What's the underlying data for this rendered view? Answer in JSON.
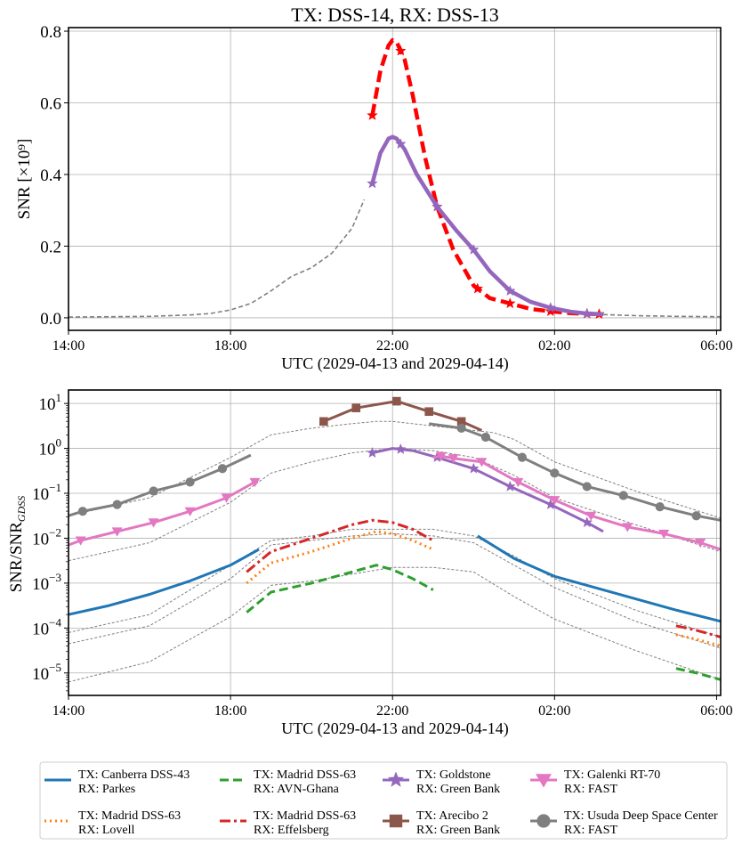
{
  "chart_data": [
    {
      "type": "line",
      "title": "TX: DSS-14, RX: DSS-13",
      "xlabel": "UTC (2029-04-13 and 2029-04-14)",
      "ylabel": "SNR [×10⁹]",
      "xlim": [
        14,
        30.1
      ],
      "ylim": [
        -0.035,
        0.81
      ],
      "xticks": [
        {
          "v": 14,
          "label": "14:00"
        },
        {
          "v": 18,
          "label": "18:00"
        },
        {
          "v": 22,
          "label": "22:00"
        },
        {
          "v": 26,
          "label": "02:00"
        },
        {
          "v": 30,
          "label": "06:00"
        }
      ],
      "yticks": [
        {
          "v": 0.0,
          "label": "0.0"
        },
        {
          "v": 0.2,
          "label": "0.2"
        },
        {
          "v": 0.4,
          "label": "0.4"
        },
        {
          "v": 0.6,
          "label": "0.6"
        },
        {
          "v": 0.8,
          "label": "0.8"
        }
      ],
      "grid": true,
      "series": [
        {
          "color": "#808080",
          "style": "dashed-thin",
          "x": [
            14,
            15,
            16,
            17,
            17.5,
            18,
            18.5,
            19,
            19.5,
            20,
            20.5,
            21,
            21.3
          ],
          "y": [
            0.002,
            0.003,
            0.004,
            0.008,
            0.012,
            0.022,
            0.04,
            0.075,
            0.115,
            0.14,
            0.18,
            0.25,
            0.33
          ]
        },
        {
          "color": "#808080",
          "style": "dashed-thin",
          "x": [
            27.2,
            28,
            29,
            30.1
          ],
          "y": [
            0.009,
            0.006,
            0.004,
            0.003
          ]
        },
        {
          "color": "#ff0000",
          "style": "dashed-thick",
          "marker": "star",
          "markers_at": [
            21.5,
            22.2,
            23.1,
            24.1,
            24.9,
            25.9,
            26.8,
            27.1
          ],
          "x": [
            21.5,
            21.7,
            21.9,
            22.0,
            22.1,
            22.3,
            22.5,
            22.8,
            23.1,
            23.5,
            24.0,
            24.4,
            24.9,
            25.4,
            25.9,
            26.4,
            26.8,
            27.2
          ],
          "y": [
            0.565,
            0.69,
            0.76,
            0.775,
            0.77,
            0.72,
            0.62,
            0.45,
            0.31,
            0.19,
            0.09,
            0.055,
            0.04,
            0.025,
            0.018,
            0.013,
            0.011,
            0.01
          ]
        },
        {
          "color": "#9467bd",
          "style": "solid-thick",
          "marker": "star",
          "markers_at": [
            21.5,
            22.2,
            23.1,
            24.0,
            24.9,
            25.9,
            26.8
          ],
          "x": [
            21.5,
            21.7,
            21.9,
            22.0,
            22.1,
            22.3,
            22.6,
            23.1,
            23.6,
            24.0,
            24.4,
            24.9,
            25.4,
            25.9,
            26.4,
            26.8,
            27.2
          ],
          "y": [
            0.375,
            0.46,
            0.5,
            0.505,
            0.5,
            0.47,
            0.4,
            0.31,
            0.24,
            0.19,
            0.13,
            0.075,
            0.045,
            0.028,
            0.017,
            0.012,
            0.01
          ]
        }
      ]
    },
    {
      "type": "line",
      "xlabel": "UTC (2029-04-13 and 2029-04-14)",
      "ylabel": "SNR/SNR",
      "ylabel_sub": "GDSS",
      "yscale": "log",
      "xlim": [
        14,
        30.1
      ],
      "ylim_exp": [
        -5.5,
        1.3
      ],
      "xticks": [
        {
          "v": 14,
          "label": "14:00"
        },
        {
          "v": 18,
          "label": "18:00"
        },
        {
          "v": 22,
          "label": "22:00"
        },
        {
          "v": 26,
          "label": "02:00"
        },
        {
          "v": 30,
          "label": "06:00"
        }
      ],
      "yticks": [
        {
          "e": -5,
          "label": "10",
          "sup": "−5"
        },
        {
          "e": -4,
          "label": "10",
          "sup": "−4"
        },
        {
          "e": -3,
          "label": "10",
          "sup": "−3"
        },
        {
          "e": -2,
          "label": "10",
          "sup": "−2"
        },
        {
          "e": -1,
          "label": "10",
          "sup": "−1"
        },
        {
          "e": 0,
          "label": "10",
          "sup": "0"
        },
        {
          "e": 1,
          "label": "10",
          "sup": "1"
        }
      ],
      "grid": true,
      "legend": {
        "placement": "bottom",
        "columns": 4,
        "entries": [
          {
            "tx": "TX: Canberra DSS-43",
            "rx": "RX: Parkes",
            "color": "#1f77b4",
            "style": "solid",
            "marker": ""
          },
          {
            "tx": "TX: Madrid DSS-63",
            "rx": "RX: Lovell",
            "color": "#ff7f0e",
            "style": "dotted",
            "marker": ""
          },
          {
            "tx": "TX: Madrid DSS-63",
            "rx": "RX: AVN-Ghana",
            "color": "#2ca02c",
            "style": "dashed",
            "marker": ""
          },
          {
            "tx": "TX: Madrid DSS-63",
            "rx": "RX: Effelsberg",
            "color": "#d62728",
            "style": "dashdot",
            "marker": ""
          },
          {
            "tx": "TX: Goldstone",
            "rx": "RX: Green Bank",
            "color": "#9467bd",
            "style": "solid",
            "marker": "star"
          },
          {
            "tx": "TX: Arecibo 2",
            "rx": "RX: Green Bank",
            "color": "#8c564b",
            "style": "solid",
            "marker": "square"
          },
          {
            "tx": "TX: Galenki RT-70",
            "rx": "RX: FAST",
            "color": "#e377c2",
            "style": "solid",
            "marker": "triangle-down"
          },
          {
            "tx": "TX: Usuda Deep Space Center",
            "rx": "RX: FAST",
            "color": "#7f7f7f",
            "style": "solid",
            "marker": "circle"
          }
        ]
      },
      "series": [
        {
          "color": "#808080",
          "style": "dashed-thin",
          "x": [
            14,
            16,
            18,
            19,
            20,
            21,
            21.6,
            22,
            23,
            24,
            24.5,
            25,
            26,
            28,
            30.1
          ],
          "logy": [
            -1.5,
            -1.1,
            -0.2,
            0.3,
            0.45,
            0.55,
            0.6,
            0.6,
            0.5,
            0.4,
            0.35,
            0.2,
            -0.3,
            -0.95,
            -1.55
          ]
        },
        {
          "color": "#808080",
          "style": "dashed-thin",
          "x": [
            14,
            16,
            18,
            19,
            20,
            21,
            22,
            23,
            24,
            25,
            26,
            28,
            30.1
          ],
          "logy": [
            -2.5,
            -2.1,
            -1.2,
            -0.55,
            -0.3,
            -0.1,
            0.0,
            -0.05,
            -0.2,
            -0.6,
            -1.1,
            -1.7,
            -2.3
          ]
        },
        {
          "color": "#808080",
          "style": "dashed-thin",
          "x": [
            14,
            16,
            18,
            19,
            20,
            21,
            22,
            23,
            24,
            25,
            26,
            28,
            30.1
          ],
          "logy": [
            -4.1,
            -3.7,
            -2.6,
            -2.05,
            -1.95,
            -1.8,
            -1.8,
            -1.8,
            -1.95,
            -2.4,
            -2.9,
            -3.6,
            -4.2
          ]
        },
        {
          "color": "#808080",
          "style": "dashed-thin",
          "x": [
            14,
            16,
            18,
            19,
            20,
            21,
            22,
            23,
            24,
            25,
            26,
            28,
            30.1
          ],
          "logy": [
            -4.35,
            -3.95,
            -2.9,
            -2.15,
            -2.05,
            -1.95,
            -1.9,
            -1.95,
            -2.1,
            -2.6,
            -3.1,
            -3.85,
            -4.45
          ]
        },
        {
          "color": "#808080",
          "style": "dashed-thin",
          "x": [
            14,
            16,
            18,
            19,
            20,
            21,
            22,
            23,
            24,
            25,
            26,
            28,
            30.1
          ],
          "logy": [
            -5.2,
            -4.75,
            -3.75,
            -3.05,
            -2.95,
            -2.8,
            -2.65,
            -2.65,
            -2.75,
            -3.3,
            -3.8,
            -4.5,
            -5.15
          ]
        },
        {
          "color": "#1f77b4",
          "style": "solid",
          "x": [
            14,
            15,
            16,
            17,
            18,
            18.7
          ],
          "logy": [
            -3.7,
            -3.5,
            -3.25,
            -2.95,
            -2.6,
            -2.25
          ]
        },
        {
          "color": "#1f77b4",
          "style": "solid",
          "x": [
            24.1,
            25,
            26,
            27,
            28,
            29,
            30.1
          ],
          "logy": [
            -1.95,
            -2.45,
            -2.85,
            -3.1,
            -3.35,
            -3.6,
            -3.85
          ]
        },
        {
          "color": "#ff7f0e",
          "style": "dotted",
          "x": [
            18.4,
            19,
            20,
            21,
            21.6,
            22,
            22.5,
            23
          ],
          "logy": [
            -3.0,
            -2.55,
            -2.3,
            -2.0,
            -1.85,
            -1.9,
            -2.05,
            -2.25
          ]
        },
        {
          "color": "#ff7f0e",
          "style": "dotted",
          "x": [
            29,
            29.5,
            30.1
          ],
          "logy": [
            -4.15,
            -4.25,
            -4.4
          ]
        },
        {
          "color": "#2ca02c",
          "style": "dashed",
          "x": [
            18.4,
            19,
            20,
            21,
            21.6,
            22,
            22.5,
            23
          ],
          "logy": [
            -3.65,
            -3.2,
            -3.0,
            -2.75,
            -2.6,
            -2.7,
            -2.9,
            -3.15
          ]
        },
        {
          "color": "#2ca02c",
          "style": "dashed",
          "x": [
            29,
            29.5,
            30.1
          ],
          "logy": [
            -4.9,
            -5.0,
            -5.15
          ]
        },
        {
          "color": "#d62728",
          "style": "dashdot",
          "x": [
            18.4,
            19,
            20,
            21,
            21.5,
            22,
            22.5,
            23
          ],
          "logy": [
            -2.75,
            -2.3,
            -2.0,
            -1.7,
            -1.6,
            -1.65,
            -1.8,
            -2.05
          ]
        },
        {
          "color": "#d62728",
          "style": "dashdot",
          "x": [
            29,
            29.5,
            30.1
          ],
          "logy": [
            -3.95,
            -4.05,
            -4.2
          ]
        },
        {
          "color": "#9467bd",
          "style": "solid",
          "marker": "star",
          "markers_at": [
            21.5,
            22.2,
            23.1,
            24.0,
            24.9,
            25.9,
            26.8
          ],
          "x": [
            21.5,
            22.0,
            22.5,
            23.1,
            24.0,
            24.9,
            25.9,
            26.8,
            27.2
          ],
          "logy": [
            -0.1,
            0.0,
            -0.05,
            -0.2,
            -0.45,
            -0.85,
            -1.25,
            -1.65,
            -1.85
          ]
        },
        {
          "color": "#8c564b",
          "style": "solid",
          "marker": "square",
          "markers_at": [
            20.3,
            21.1,
            22.1,
            22.9,
            23.7
          ],
          "x": [
            20.3,
            21.1,
            22.1,
            22.9,
            23.7,
            24.2
          ],
          "logy": [
            0.6,
            0.9,
            1.05,
            0.82,
            0.6,
            0.4
          ]
        },
        {
          "color": "#e377c2",
          "style": "solid",
          "marker": "triangle-down",
          "markers_at": [
            14.3,
            15.2,
            16.1,
            17.0,
            17.9,
            18.6
          ],
          "x": [
            14,
            14.3,
            15.2,
            16.1,
            17.0,
            17.9,
            18.6
          ],
          "logy": [
            -2.15,
            -2.05,
            -1.85,
            -1.65,
            -1.4,
            -1.1,
            -0.75
          ]
        },
        {
          "color": "#e377c2",
          "style": "solid",
          "marker": "triangle-down",
          "markers_at": [
            23.2,
            23.5,
            24.2,
            25.1,
            26.0,
            26.9,
            27.8,
            28.7,
            29.6
          ],
          "x": [
            23.0,
            23.2,
            23.5,
            24.2,
            25.1,
            26.0,
            26.9,
            27.8,
            28.7,
            29.6,
            30.1
          ],
          "logy": [
            -0.2,
            -0.17,
            -0.22,
            -0.3,
            -0.75,
            -1.15,
            -1.5,
            -1.75,
            -1.9,
            -2.1,
            -2.25
          ]
        },
        {
          "color": "#7f7f7f",
          "style": "solid",
          "marker": "circle",
          "markers_at": [
            14.35,
            15.2,
            16.1,
            17.0,
            17.8
          ],
          "x": [
            14,
            14.35,
            15.2,
            16.1,
            17.0,
            17.8,
            18.5
          ],
          "logy": [
            -1.5,
            -1.4,
            -1.25,
            -0.95,
            -0.75,
            -0.45,
            -0.15
          ]
        },
        {
          "color": "#7f7f7f",
          "style": "solid",
          "marker": "circle",
          "markers_at": [
            23.7,
            24.3,
            25.2,
            26.0,
            26.8,
            27.7,
            28.6,
            29.5
          ],
          "x": [
            22.9,
            23.7,
            24.3,
            25.2,
            26.0,
            26.8,
            27.7,
            28.6,
            29.5,
            30.1
          ],
          "logy": [
            0.55,
            0.45,
            0.25,
            -0.2,
            -0.55,
            -0.85,
            -1.05,
            -1.3,
            -1.5,
            -1.6
          ]
        }
      ]
    }
  ]
}
